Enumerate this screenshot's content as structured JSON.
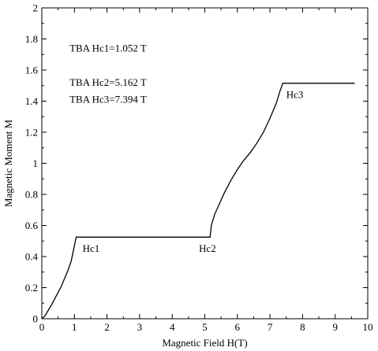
{
  "chart_data": {
    "type": "line",
    "title": "",
    "xlabel": "Magnetic Field H(T)",
    "ylabel": "Magnetic Moment M",
    "xlim": [
      0,
      10
    ],
    "ylim": [
      0,
      2
    ],
    "grid": false,
    "x_ticks": [
      0,
      1,
      2,
      3,
      4,
      5,
      6,
      7,
      8,
      9,
      10
    ],
    "x_tick_labels": [
      "0",
      "1",
      "2",
      "3",
      "4",
      "5",
      "6",
      "7",
      "8",
      "9",
      "10"
    ],
    "y_ticks": [
      0,
      0.2,
      0.4,
      0.6,
      0.8,
      1,
      1.2,
      1.4,
      1.6,
      1.8,
      2
    ],
    "y_tick_labels": [
      "0",
      "0.2",
      "0.4",
      "0.6",
      "0.8",
      "1",
      "1.2",
      "1.4",
      "1.6",
      "1.8",
      "2"
    ],
    "series": [
      {
        "x": [
          0,
          0.1,
          0.2,
          0.3,
          0.4,
          0.5,
          0.6,
          0.7,
          0.8,
          0.9,
          1.0,
          1.052,
          2,
          3,
          4,
          5,
          5.162,
          5.2,
          5.3,
          5.45,
          5.6,
          5.8,
          6.0,
          6.2,
          6.4,
          6.6,
          6.8,
          7.0,
          7.2,
          7.3,
          7.394,
          8,
          9,
          9.6
        ],
        "y": [
          0,
          0.02,
          0.055,
          0.09,
          0.13,
          0.17,
          0.21,
          0.26,
          0.31,
          0.37,
          0.47,
          0.525,
          0.525,
          0.525,
          0.525,
          0.525,
          0.525,
          0.6,
          0.67,
          0.74,
          0.81,
          0.89,
          0.96,
          1.02,
          1.07,
          1.13,
          1.2,
          1.29,
          1.39,
          1.46,
          1.515,
          1.515,
          1.515,
          1.515
        ]
      }
    ],
    "annotations": [
      {
        "text": "TBA Hc1=1.052 T",
        "x": 0.85,
        "y": 1.72
      },
      {
        "text": "TBA Hc2=5.162 T",
        "x": 0.85,
        "y": 1.5
      },
      {
        "text": "TBA Hc3=7.394 T",
        "x": 0.85,
        "y": 1.39
      },
      {
        "text": "Hc1",
        "x": 1.25,
        "y": 0.43
      },
      {
        "text": "Hc2",
        "x": 4.82,
        "y": 0.43
      },
      {
        "text": "Hc3",
        "x": 7.5,
        "y": 1.42
      }
    ]
  }
}
